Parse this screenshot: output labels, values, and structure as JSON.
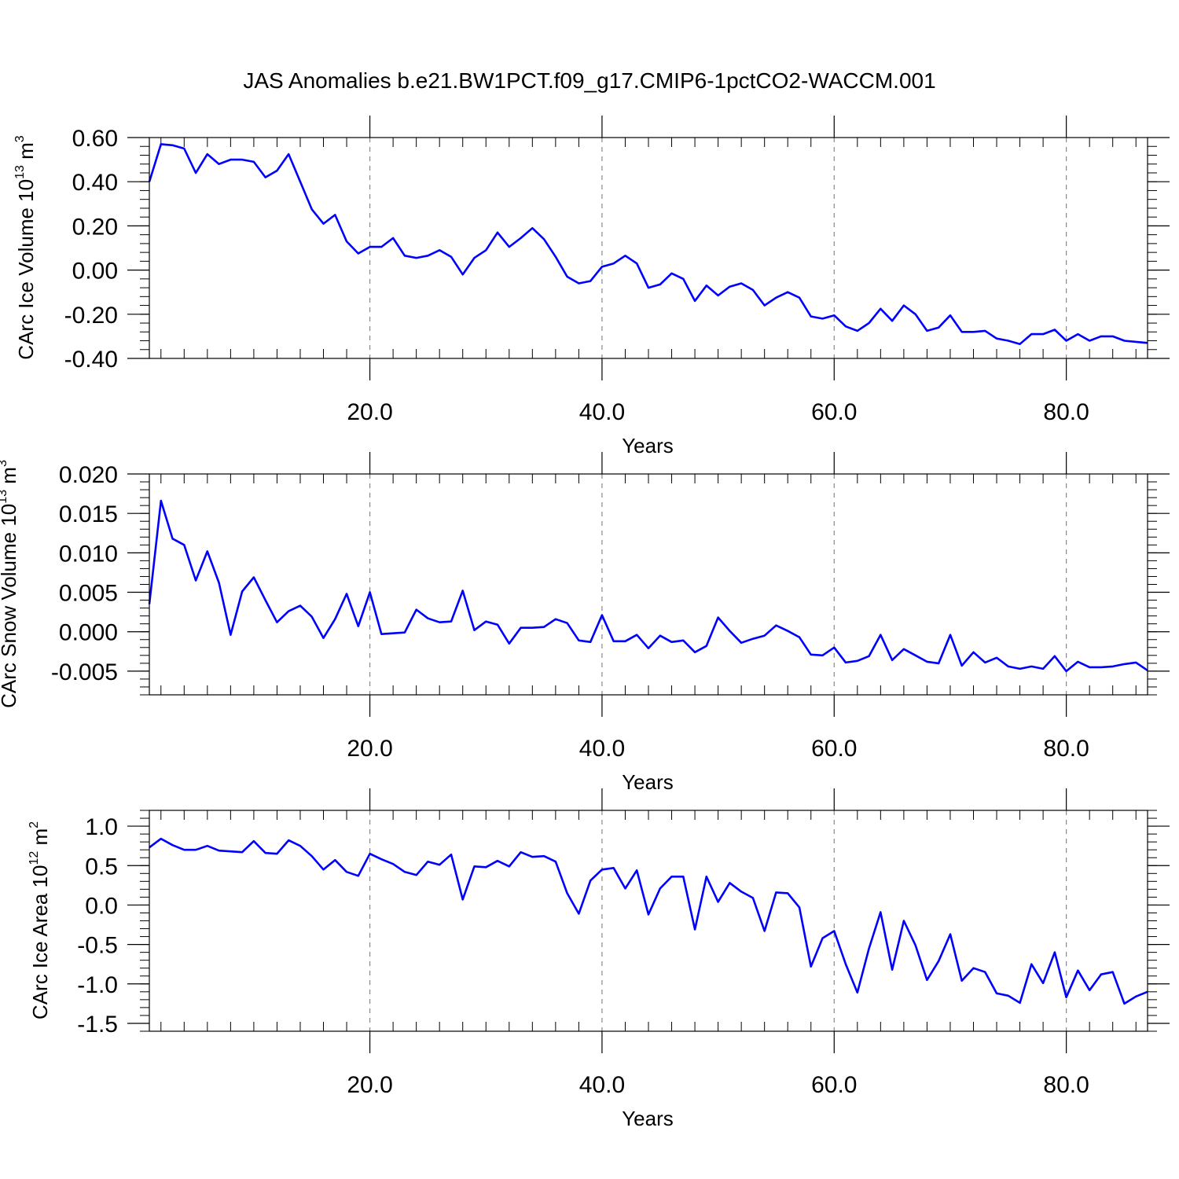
{
  "title": "JAS Anomalies b.e21.BW1PCT.f09_g17.CMIP6-1pctCO2-WACCM.001",
  "colors": {
    "line": "#0000ff",
    "grid": "#888888",
    "axis": "#000000"
  },
  "chart_data": [
    {
      "type": "line",
      "ylabel_prefix": "CArc Ice Volume 10",
      "ylabel_exp": "13",
      "ylabel_unit": "m",
      "ylabel_unit_exp": "3",
      "xlabel": "Years",
      "xlim": [
        1,
        87
      ],
      "ylim": [
        -0.4,
        0.6
      ],
      "yticks": [
        -0.4,
        -0.2,
        0.0,
        0.2,
        0.4,
        0.6
      ],
      "ytick_labels": [
        "-0.40",
        "-0.20",
        "0.00",
        "0.20",
        "0.40",
        "0.60"
      ],
      "xticks": [
        20,
        40,
        60,
        80
      ],
      "xtick_labels": [
        "20.0",
        "40.0",
        "60.0",
        "80.0"
      ],
      "grid": "vertical dashed at major x ticks",
      "series": [
        {
          "x": [
            1,
            2,
            3,
            4,
            5,
            6,
            7,
            8,
            9,
            10,
            11,
            12,
            13,
            14,
            15,
            16,
            17,
            18,
            19,
            20,
            21,
            22,
            23,
            24,
            25,
            26,
            27,
            28,
            29,
            30,
            31,
            32,
            33,
            34,
            35,
            36,
            37,
            38,
            39,
            40,
            41,
            42,
            43,
            44,
            45,
            46,
            47,
            48,
            49,
            50,
            51,
            52,
            53,
            54,
            55,
            56,
            57,
            58,
            59,
            60,
            61,
            62,
            63,
            64,
            65,
            66,
            67,
            68,
            69,
            70,
            71,
            72,
            73,
            74,
            75,
            76,
            77,
            78,
            79,
            80,
            81,
            82,
            83,
            84,
            85,
            86,
            87
          ],
          "values": [
            0.4,
            0.57,
            0.565,
            0.55,
            0.44,
            0.525,
            0.48,
            0.5,
            0.5,
            0.49,
            0.42,
            0.45,
            0.525,
            0.4,
            0.275,
            0.21,
            0.25,
            0.13,
            0.075,
            0.105,
            0.105,
            0.145,
            0.065,
            0.055,
            0.065,
            0.09,
            0.06,
            -0.02,
            0.055,
            0.09,
            0.17,
            0.105,
            0.145,
            0.19,
            0.14,
            0.06,
            -0.03,
            -0.06,
            -0.05,
            0.015,
            0.03,
            0.065,
            0.03,
            -0.08,
            -0.065,
            -0.015,
            -0.04,
            -0.14,
            -0.07,
            -0.115,
            -0.075,
            -0.06,
            -0.09,
            -0.16,
            -0.125,
            -0.1,
            -0.125,
            -0.21,
            -0.22,
            -0.205,
            -0.255,
            -0.275,
            -0.24,
            -0.175,
            -0.23,
            -0.16,
            -0.2,
            -0.275,
            -0.26,
            -0.205,
            -0.28,
            -0.28,
            -0.275,
            -0.31,
            -0.32,
            -0.335,
            -0.29,
            -0.29,
            -0.27,
            -0.32,
            -0.29,
            -0.32,
            -0.3,
            -0.3,
            -0.32,
            -0.325,
            -0.33
          ]
        }
      ]
    },
    {
      "type": "line",
      "ylabel_prefix": "CArc Snow Volume 10",
      "ylabel_exp": "13",
      "ylabel_unit": "m",
      "ylabel_unit_exp": "3",
      "xlabel": "Years",
      "xlim": [
        1,
        87
      ],
      "ylim": [
        -0.008,
        0.02
      ],
      "yticks": [
        -0.005,
        0.0,
        0.005,
        0.01,
        0.015,
        0.02
      ],
      "ytick_labels": [
        "-0.005",
        "0.000",
        "0.005",
        "0.010",
        "0.015",
        "0.020"
      ],
      "xticks": [
        20,
        40,
        60,
        80
      ],
      "xtick_labels": [
        "20.0",
        "40.0",
        "60.0",
        "80.0"
      ],
      "grid": "vertical dashed at major x ticks",
      "series": [
        {
          "x": [
            1,
            2,
            3,
            4,
            5,
            6,
            7,
            8,
            9,
            10,
            11,
            12,
            13,
            14,
            15,
            16,
            17,
            18,
            19,
            20,
            21,
            22,
            23,
            24,
            25,
            26,
            27,
            28,
            29,
            30,
            31,
            32,
            33,
            34,
            35,
            36,
            37,
            38,
            39,
            40,
            41,
            42,
            43,
            44,
            45,
            46,
            47,
            48,
            49,
            50,
            51,
            52,
            53,
            54,
            55,
            56,
            57,
            58,
            59,
            60,
            61,
            62,
            63,
            64,
            65,
            66,
            67,
            68,
            69,
            70,
            71,
            72,
            73,
            74,
            75,
            76,
            77,
            78,
            79,
            80,
            81,
            82,
            83,
            84,
            85,
            86,
            87
          ],
          "values": [
            0.0035,
            0.0166,
            0.0118,
            0.011,
            0.0065,
            0.0102,
            0.0062,
            -0.0004,
            0.0051,
            0.0069,
            0.004,
            0.0012,
            0.0026,
            0.0033,
            0.0019,
            -0.0008,
            0.0016,
            0.0048,
            0.0007,
            0.005,
            -0.0003,
            -0.0002,
            -0.0001,
            0.0028,
            0.0017,
            0.0012,
            0.0013,
            0.0052,
            0.0002,
            0.0013,
            0.0009,
            -0.0015,
            0.0005,
            0.0005,
            0.0006,
            0.0016,
            0.0011,
            -0.0011,
            -0.0013,
            0.0021,
            -0.0012,
            -0.0012,
            -0.0004,
            -0.0021,
            -0.0005,
            -0.0013,
            -0.0011,
            -0.0026,
            -0.0018,
            0.0018,
            0.0001,
            -0.0014,
            -0.0009,
            -0.0005,
            0.0008,
            0.0001,
            -0.0007,
            -0.0029,
            -0.003,
            -0.002,
            -0.0039,
            -0.0037,
            -0.0031,
            -0.0004,
            -0.0036,
            -0.0022,
            -0.003,
            -0.0038,
            -0.004,
            -0.0004,
            -0.0043,
            -0.0026,
            -0.0039,
            -0.0033,
            -0.0044,
            -0.0047,
            -0.0044,
            -0.0047,
            -0.0031,
            -0.005,
            -0.0038,
            -0.0045,
            -0.0045,
            -0.0044,
            -0.0041,
            -0.0039,
            -0.0049
          ]
        }
      ]
    },
    {
      "type": "line",
      "ylabel_prefix": "CArc Ice Area 10",
      "ylabel_exp": "12",
      "ylabel_unit": "m",
      "ylabel_unit_exp": "2",
      "xlabel": "Years",
      "xlim": [
        1,
        87
      ],
      "ylim": [
        -1.6,
        1.2
      ],
      "yticks": [
        -1.5,
        -1.0,
        -0.5,
        0.0,
        0.5,
        1.0
      ],
      "ytick_labels": [
        "-1.5",
        "-1.0",
        "-0.5",
        "0.0",
        "0.5",
        "1.0"
      ],
      "xticks": [
        20,
        40,
        60,
        80
      ],
      "xtick_labels": [
        "20.0",
        "40.0",
        "60.0",
        "80.0"
      ],
      "grid": "vertical dashed at major x ticks",
      "series": [
        {
          "x": [
            1,
            2,
            3,
            4,
            5,
            6,
            7,
            8,
            9,
            10,
            11,
            12,
            13,
            14,
            15,
            16,
            17,
            18,
            19,
            20,
            21,
            22,
            23,
            24,
            25,
            26,
            27,
            28,
            29,
            30,
            31,
            32,
            33,
            34,
            35,
            36,
            37,
            38,
            39,
            40,
            41,
            42,
            43,
            44,
            45,
            46,
            47,
            48,
            49,
            50,
            51,
            52,
            53,
            54,
            55,
            56,
            57,
            58,
            59,
            60,
            61,
            62,
            63,
            64,
            65,
            66,
            67,
            68,
            69,
            70,
            71,
            72,
            73,
            74,
            75,
            76,
            77,
            78,
            79,
            80,
            81,
            82,
            83,
            84,
            85,
            86,
            87
          ],
          "values": [
            0.73,
            0.84,
            0.76,
            0.7,
            0.7,
            0.75,
            0.69,
            0.68,
            0.67,
            0.81,
            0.66,
            0.65,
            0.82,
            0.75,
            0.62,
            0.45,
            0.57,
            0.42,
            0.37,
            0.65,
            0.58,
            0.52,
            0.42,
            0.38,
            0.55,
            0.51,
            0.64,
            0.07,
            0.49,
            0.48,
            0.56,
            0.49,
            0.67,
            0.61,
            0.62,
            0.55,
            0.15,
            -0.11,
            0.31,
            0.45,
            0.47,
            0.21,
            0.44,
            -0.12,
            0.21,
            0.36,
            0.36,
            -0.31,
            0.36,
            0.04,
            0.28,
            0.17,
            0.09,
            -0.33,
            0.16,
            0.15,
            -0.03,
            -0.78,
            -0.42,
            -0.33,
            -0.75,
            -1.11,
            -0.55,
            -0.09,
            -0.82,
            -0.2,
            -0.51,
            -0.95,
            -0.71,
            -0.37,
            -0.96,
            -0.8,
            -0.85,
            -1.12,
            -1.15,
            -1.24,
            -0.75,
            -0.99,
            -0.6,
            -1.17,
            -0.83,
            -1.08,
            -0.88,
            -0.85,
            -1.25,
            -1.16,
            -1.1
          ]
        }
      ]
    }
  ]
}
